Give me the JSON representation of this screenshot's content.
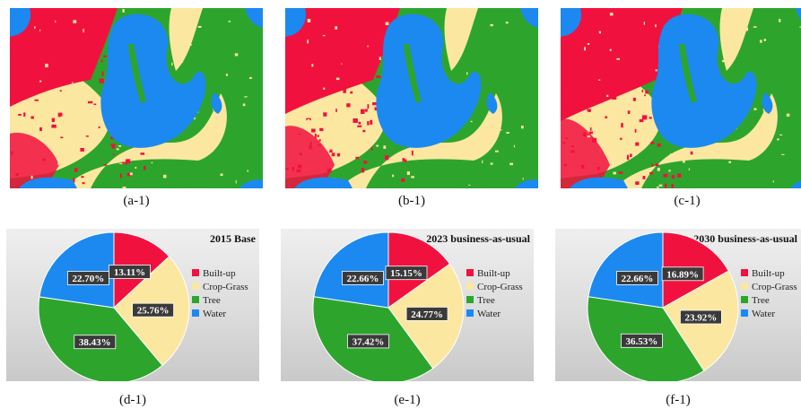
{
  "maps": [
    {
      "caption": "(a-1)"
    },
    {
      "caption": "(b-1)"
    },
    {
      "caption": "(c-1)"
    }
  ],
  "colors": {
    "Built-up": "#f1113f",
    "Crop-Grass": "#fce7a1",
    "Tree": "#2da52d",
    "Water": "#1b89f0"
  },
  "legend": [
    "Built-up",
    "Crop-Grass",
    "Tree",
    "Water"
  ],
  "chart_data": [
    {
      "type": "pie",
      "title": "2015 Base",
      "caption": "(d-1)",
      "categories": [
        "Built-up",
        "Crop-Grass",
        "Tree",
        "Water"
      ],
      "values": [
        13.11,
        25.76,
        38.43,
        22.7
      ],
      "labels": [
        "13.11%",
        "25.76%",
        "38.43%",
        "22.70%"
      ],
      "legend_position": "right"
    },
    {
      "type": "pie",
      "title": "2023 business-as-usual",
      "caption": "(e-1)",
      "categories": [
        "Built-up",
        "Crop-Grass",
        "Tree",
        "Water"
      ],
      "values": [
        15.15,
        24.77,
        37.42,
        22.66
      ],
      "labels": [
        "15.15%",
        "24.77%",
        "37.42%",
        "22.66%"
      ],
      "legend_position": "right"
    },
    {
      "type": "pie",
      "title": "2030 business-as-usual",
      "caption": "(f-1)",
      "categories": [
        "Built-up",
        "Crop-Grass",
        "Tree",
        "Water"
      ],
      "values": [
        16.89,
        23.92,
        36.53,
        22.66
      ],
      "labels": [
        "16.89%",
        "23.92%",
        "36.53%",
        "22.66%"
      ],
      "legend_position": "right"
    }
  ]
}
